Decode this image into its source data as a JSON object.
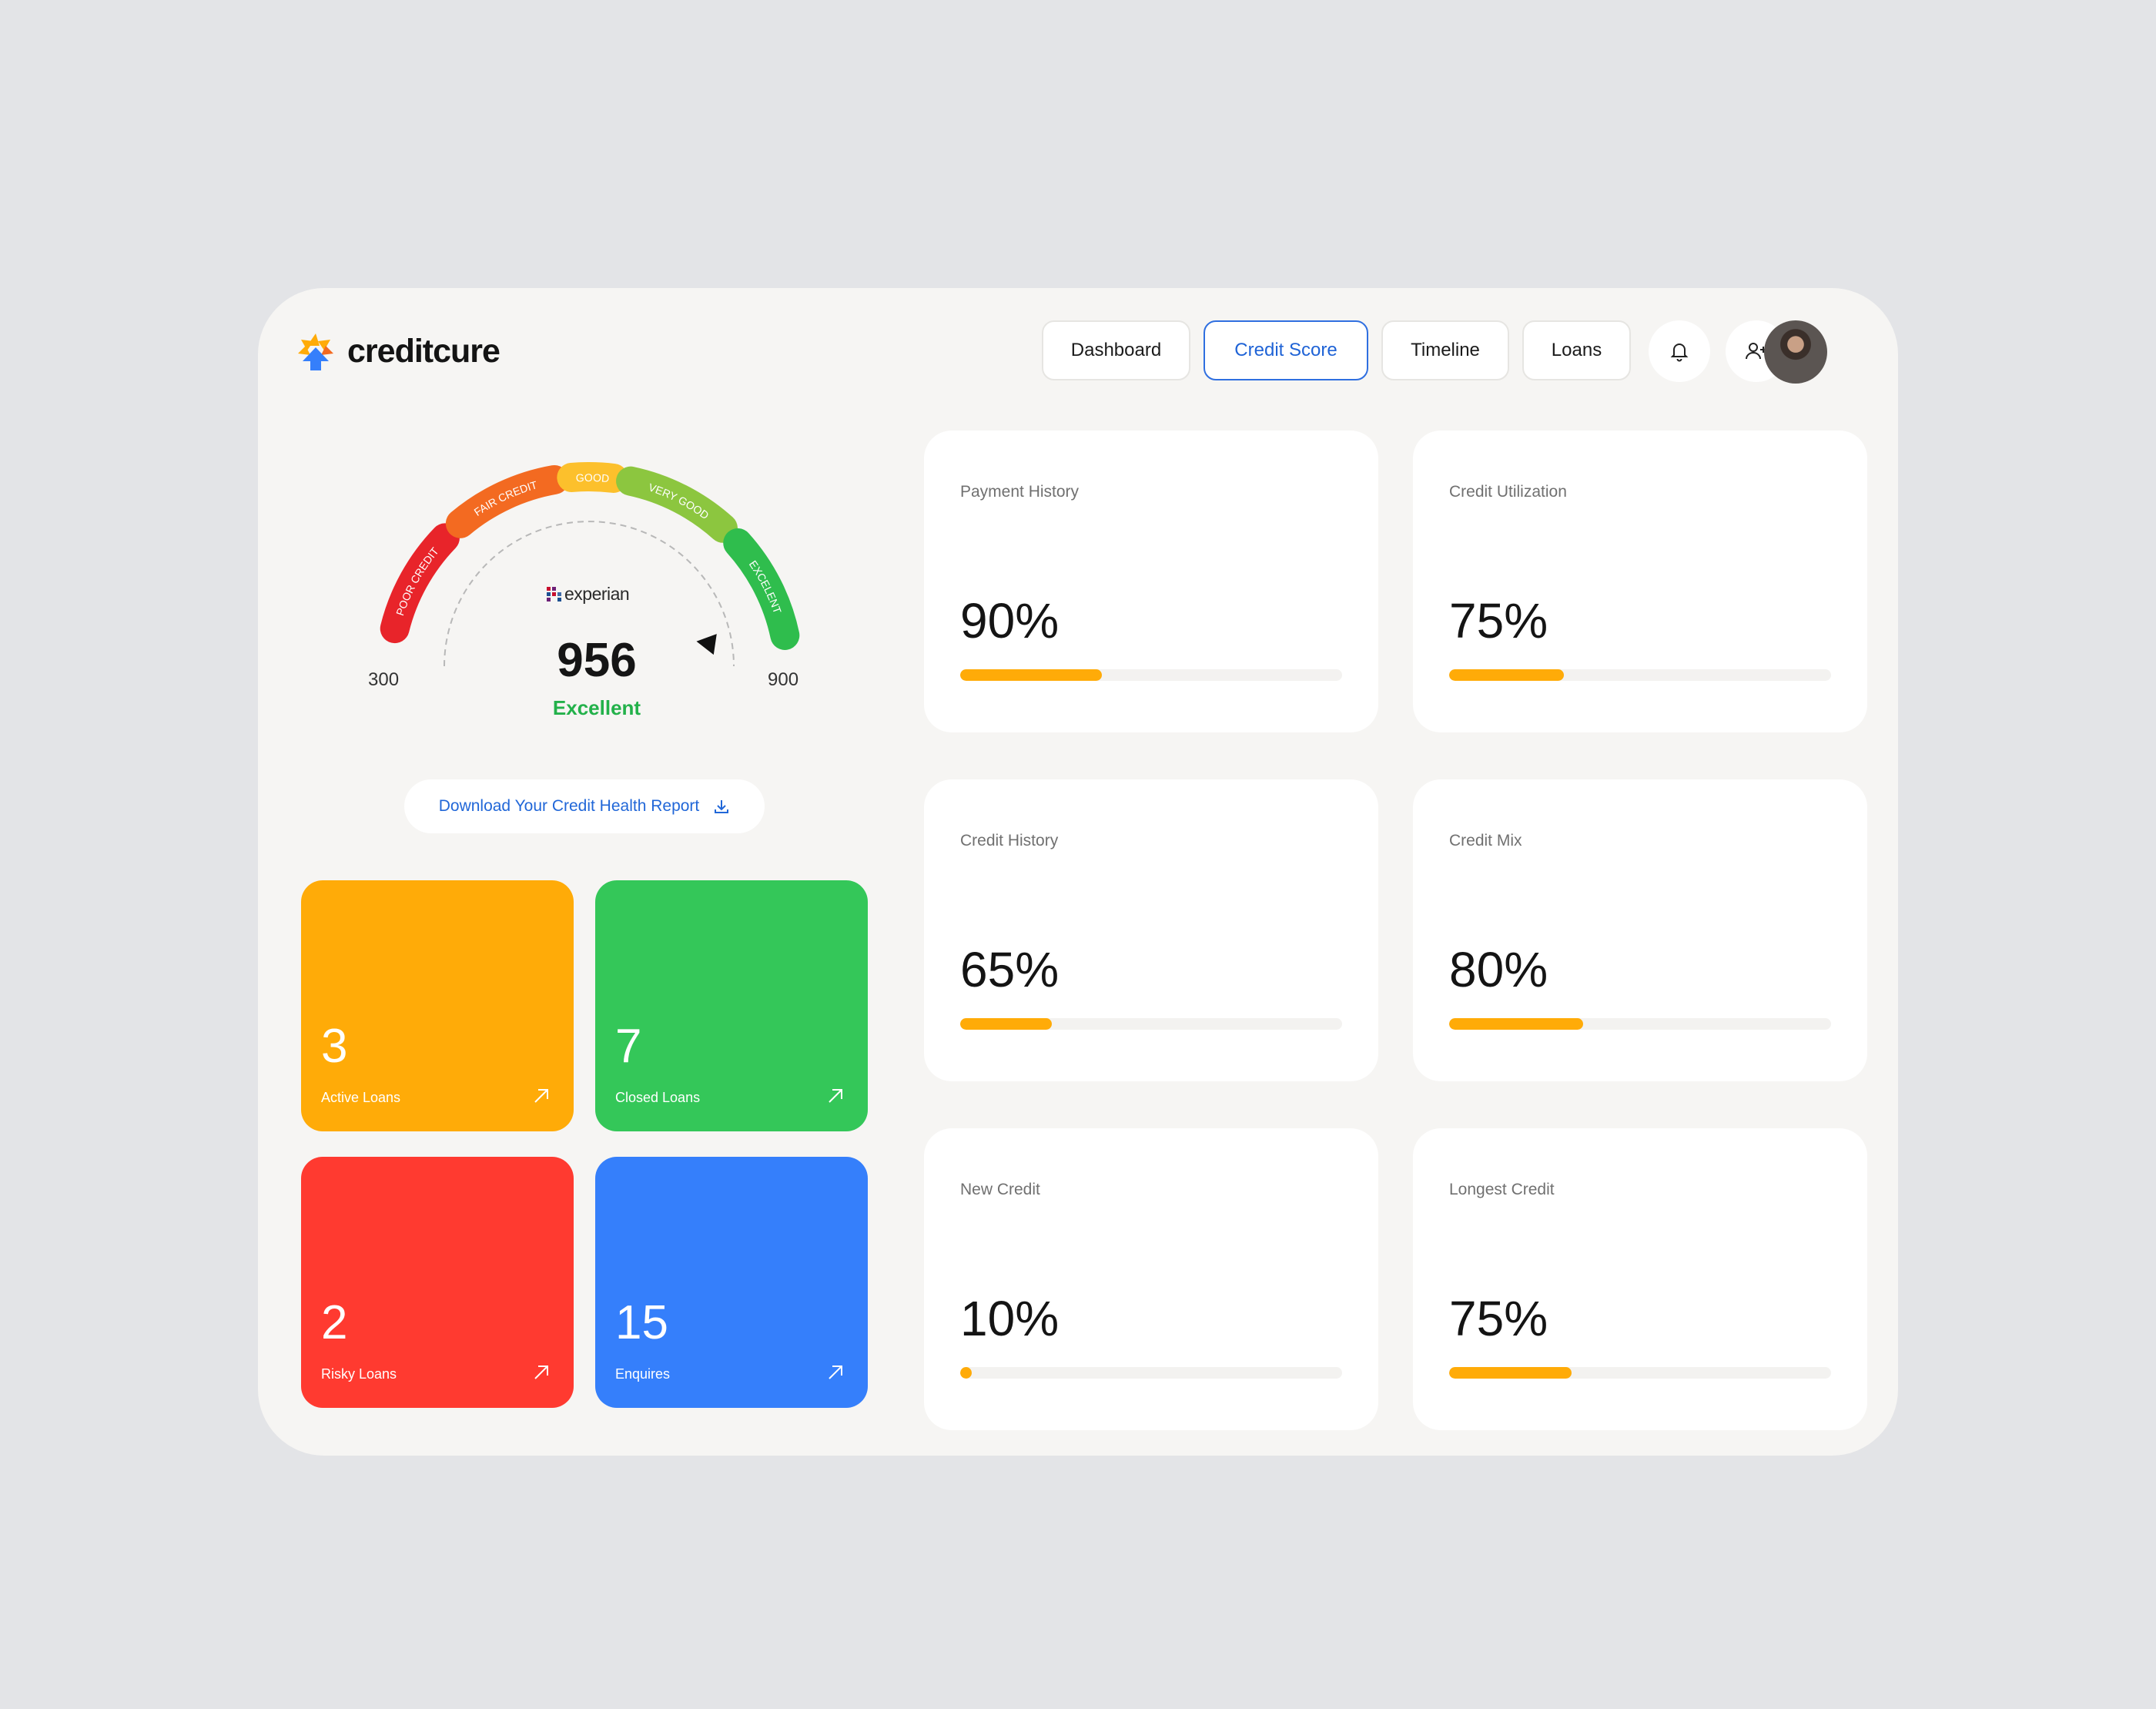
{
  "app": {
    "brand": "creditcure"
  },
  "nav": [
    {
      "label": "Dashboard",
      "active": false
    },
    {
      "label": "Credit Score",
      "active": true
    },
    {
      "label": "Timeline",
      "active": false
    },
    {
      "label": "Loans",
      "active": false
    }
  ],
  "header_icons": [
    "bell-icon",
    "add-user-icon"
  ],
  "gauge": {
    "bands": [
      "POOR CREDIT",
      "FAIR CREDIT",
      "GOOD",
      "VERY GOOD",
      "EXCELENT"
    ],
    "band_colors": [
      "#e8242a",
      "#f36a21",
      "#fcc02c",
      "#8cc63f",
      "#2fbd4d"
    ],
    "min_label": "300",
    "max_label": "900",
    "bureau": "experian",
    "score": "956",
    "rating": "Excellent"
  },
  "download": {
    "label": "Download Your Credit Health Report"
  },
  "tiles": [
    {
      "count": "3",
      "label": "Active Loans",
      "color": "#ffab08"
    },
    {
      "count": "7",
      "label": "Closed Loans",
      "color": "#34c759"
    },
    {
      "count": "2",
      "label": "Risky Loans",
      "color": "#ff3a30"
    },
    {
      "count": "15",
      "label": "Enquires",
      "color": "#357ffb"
    }
  ],
  "metrics": [
    {
      "title": "Payment History",
      "value": "90%",
      "bar_fraction": 0.37
    },
    {
      "title": "Credit Utilization",
      "value": "75%",
      "bar_fraction": 0.3
    },
    {
      "title": "Credit History",
      "value": "65%",
      "bar_fraction": 0.24
    },
    {
      "title": "Credit Mix",
      "value": "80%",
      "bar_fraction": 0.35
    },
    {
      "title": "New Credit",
      "value": "10%",
      "bar_fraction": 0.03
    },
    {
      "title": "Longest Credit",
      "value": "75%",
      "bar_fraction": 0.32
    }
  ]
}
